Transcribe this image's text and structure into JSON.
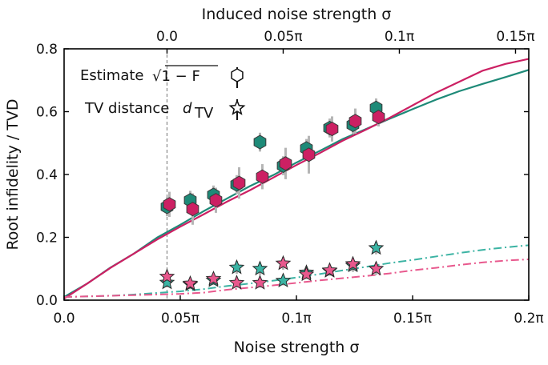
{
  "chart_data": {
    "type": "scatter",
    "xlabel": "Noise strength σ",
    "ylabel": "Root infidelity / TVD",
    "top_xlabel": "Induced noise strength σ",
    "xlim": [
      0,
      0.2
    ],
    "ylim": [
      0,
      0.8
    ],
    "x_unit": "π",
    "x_ticks": [
      {
        "value": 0.0,
        "label": "0.0"
      },
      {
        "value": 0.05,
        "label": "0.05π"
      },
      {
        "value": 0.1,
        "label": "0.1π"
      },
      {
        "value": 0.15,
        "label": "0.15π"
      },
      {
        "value": 0.2,
        "label": "0.2π"
      }
    ],
    "y_ticks": [
      {
        "value": 0.0,
        "label": "0.0"
      },
      {
        "value": 0.2,
        "label": "0.2"
      },
      {
        "value": 0.4,
        "label": "0.4"
      },
      {
        "value": 0.6,
        "label": "0.6"
      },
      {
        "value": 0.8,
        "label": "0.8"
      }
    ],
    "top_axis_offset": 0.0443,
    "top_ticks": [
      {
        "value": 0.0,
        "label": "0.0"
      },
      {
        "value": 0.05,
        "label": "0.05π"
      },
      {
        "value": 0.1,
        "label": "0.1π"
      },
      {
        "value": 0.15,
        "label": "0.15π"
      }
    ],
    "reference_line_x": 0.0443,
    "legend": {
      "position": "upper-left",
      "entries": [
        {
          "label_prefix": "Estimate ",
          "label_math": "√1 − F",
          "marker": "hexagon"
        },
        {
          "label_prefix": "TV distance ",
          "label_math": "d_TV",
          "marker": "star"
        }
      ]
    },
    "colors": {
      "teal": "#1e8a78",
      "magenta": "#cc2063",
      "teal_light": "#3bb3a3",
      "magenta_light": "#e8588d",
      "errorbar": "#b5b5b5",
      "guide": "#888888"
    },
    "series": [
      {
        "kind": "estimate-teal",
        "x": [
          0.0443,
          0.0543,
          0.0643,
          0.0743,
          0.0843,
          0.0943,
          0.1043,
          0.1143,
          0.1243,
          0.1343
        ],
        "y": [
          0.297,
          0.318,
          0.335,
          0.368,
          0.503,
          0.428,
          0.483,
          0.548,
          0.558,
          0.612
        ],
        "err": [
          0.03,
          0.03,
          0.03,
          0.03,
          0.03,
          0.03,
          0.03,
          0.03,
          0.03,
          0.03
        ]
      },
      {
        "kind": "estimate-magenta",
        "x": [
          0.0443,
          0.0543,
          0.0643,
          0.0743,
          0.0843,
          0.0943,
          0.1043,
          0.1143,
          0.1243,
          0.1343
        ],
        "y": [
          0.305,
          0.29,
          0.318,
          0.373,
          0.393,
          0.435,
          0.463,
          0.545,
          0.57,
          0.583
        ],
        "err": [
          0.04,
          0.05,
          0.04,
          0.05,
          0.04,
          0.05,
          0.06,
          0.04,
          0.04,
          0.03
        ]
      },
      {
        "kind": "tvd-teal",
        "x": [
          0.0443,
          0.0543,
          0.0643,
          0.0743,
          0.0843,
          0.0943,
          0.1043,
          0.1143,
          0.1243,
          0.1343
        ],
        "y": [
          0.056,
          0.05,
          0.063,
          0.104,
          0.1,
          0.062,
          0.088,
          0.093,
          0.11,
          0.166
        ],
        "err": [
          0.015,
          0.015,
          0.015,
          0.02,
          0.02,
          0.015,
          0.015,
          0.015,
          0.02,
          0.02
        ]
      },
      {
        "kind": "tvd-magenta",
        "x": [
          0.0443,
          0.0543,
          0.0643,
          0.0743,
          0.0843,
          0.0943,
          0.1043,
          0.1143,
          0.1243,
          0.1343
        ],
        "y": [
          0.075,
          0.053,
          0.068,
          0.055,
          0.055,
          0.117,
          0.082,
          0.095,
          0.115,
          0.1
        ],
        "err": [
          0.015,
          0.015,
          0.015,
          0.015,
          0.015,
          0.02,
          0.015,
          0.015,
          0.02,
          0.02
        ]
      },
      {
        "kind": "curve-solid-teal",
        "x": [
          0.0,
          0.01,
          0.02,
          0.03,
          0.04,
          0.05,
          0.06,
          0.07,
          0.08,
          0.09,
          0.1,
          0.11,
          0.12,
          0.13,
          0.14,
          0.15,
          0.16,
          0.17,
          0.18,
          0.19,
          0.2
        ],
        "y": [
          0.01,
          0.053,
          0.104,
          0.148,
          0.199,
          0.24,
          0.283,
          0.323,
          0.363,
          0.398,
          0.438,
          0.475,
          0.513,
          0.545,
          0.577,
          0.608,
          0.638,
          0.665,
          0.688,
          0.71,
          0.733
        ]
      },
      {
        "kind": "curve-solid-magenta",
        "x": [
          0.0,
          0.01,
          0.02,
          0.03,
          0.04,
          0.05,
          0.06,
          0.07,
          0.08,
          0.09,
          0.1,
          0.11,
          0.12,
          0.13,
          0.14,
          0.15,
          0.16,
          0.17,
          0.18,
          0.19,
          0.2
        ],
        "y": [
          0.005,
          0.053,
          0.103,
          0.148,
          0.193,
          0.234,
          0.273,
          0.313,
          0.35,
          0.39,
          0.43,
          0.468,
          0.508,
          0.543,
          0.58,
          0.62,
          0.66,
          0.695,
          0.73,
          0.752,
          0.768
        ]
      },
      {
        "kind": "curve-dashdot-teal",
        "x": [
          0.0,
          0.01,
          0.02,
          0.03,
          0.04,
          0.05,
          0.06,
          0.07,
          0.08,
          0.09,
          0.1,
          0.11,
          0.12,
          0.13,
          0.14,
          0.15,
          0.16,
          0.17,
          0.18,
          0.19,
          0.2
        ],
        "y": [
          0.01,
          0.012,
          0.014,
          0.018,
          0.023,
          0.028,
          0.035,
          0.045,
          0.053,
          0.062,
          0.072,
          0.083,
          0.095,
          0.106,
          0.118,
          0.128,
          0.139,
          0.15,
          0.16,
          0.168,
          0.175
        ]
      },
      {
        "kind": "curve-dashdot-magenta",
        "x": [
          0.0,
          0.01,
          0.02,
          0.03,
          0.04,
          0.05,
          0.06,
          0.07,
          0.08,
          0.09,
          0.1,
          0.11,
          0.12,
          0.13,
          0.14,
          0.15,
          0.16,
          0.17,
          0.18,
          0.19,
          0.2
        ],
        "y": [
          0.01,
          0.012,
          0.014,
          0.016,
          0.018,
          0.02,
          0.024,
          0.033,
          0.04,
          0.047,
          0.055,
          0.063,
          0.07,
          0.077,
          0.085,
          0.095,
          0.103,
          0.112,
          0.12,
          0.126,
          0.13
        ]
      }
    ]
  }
}
